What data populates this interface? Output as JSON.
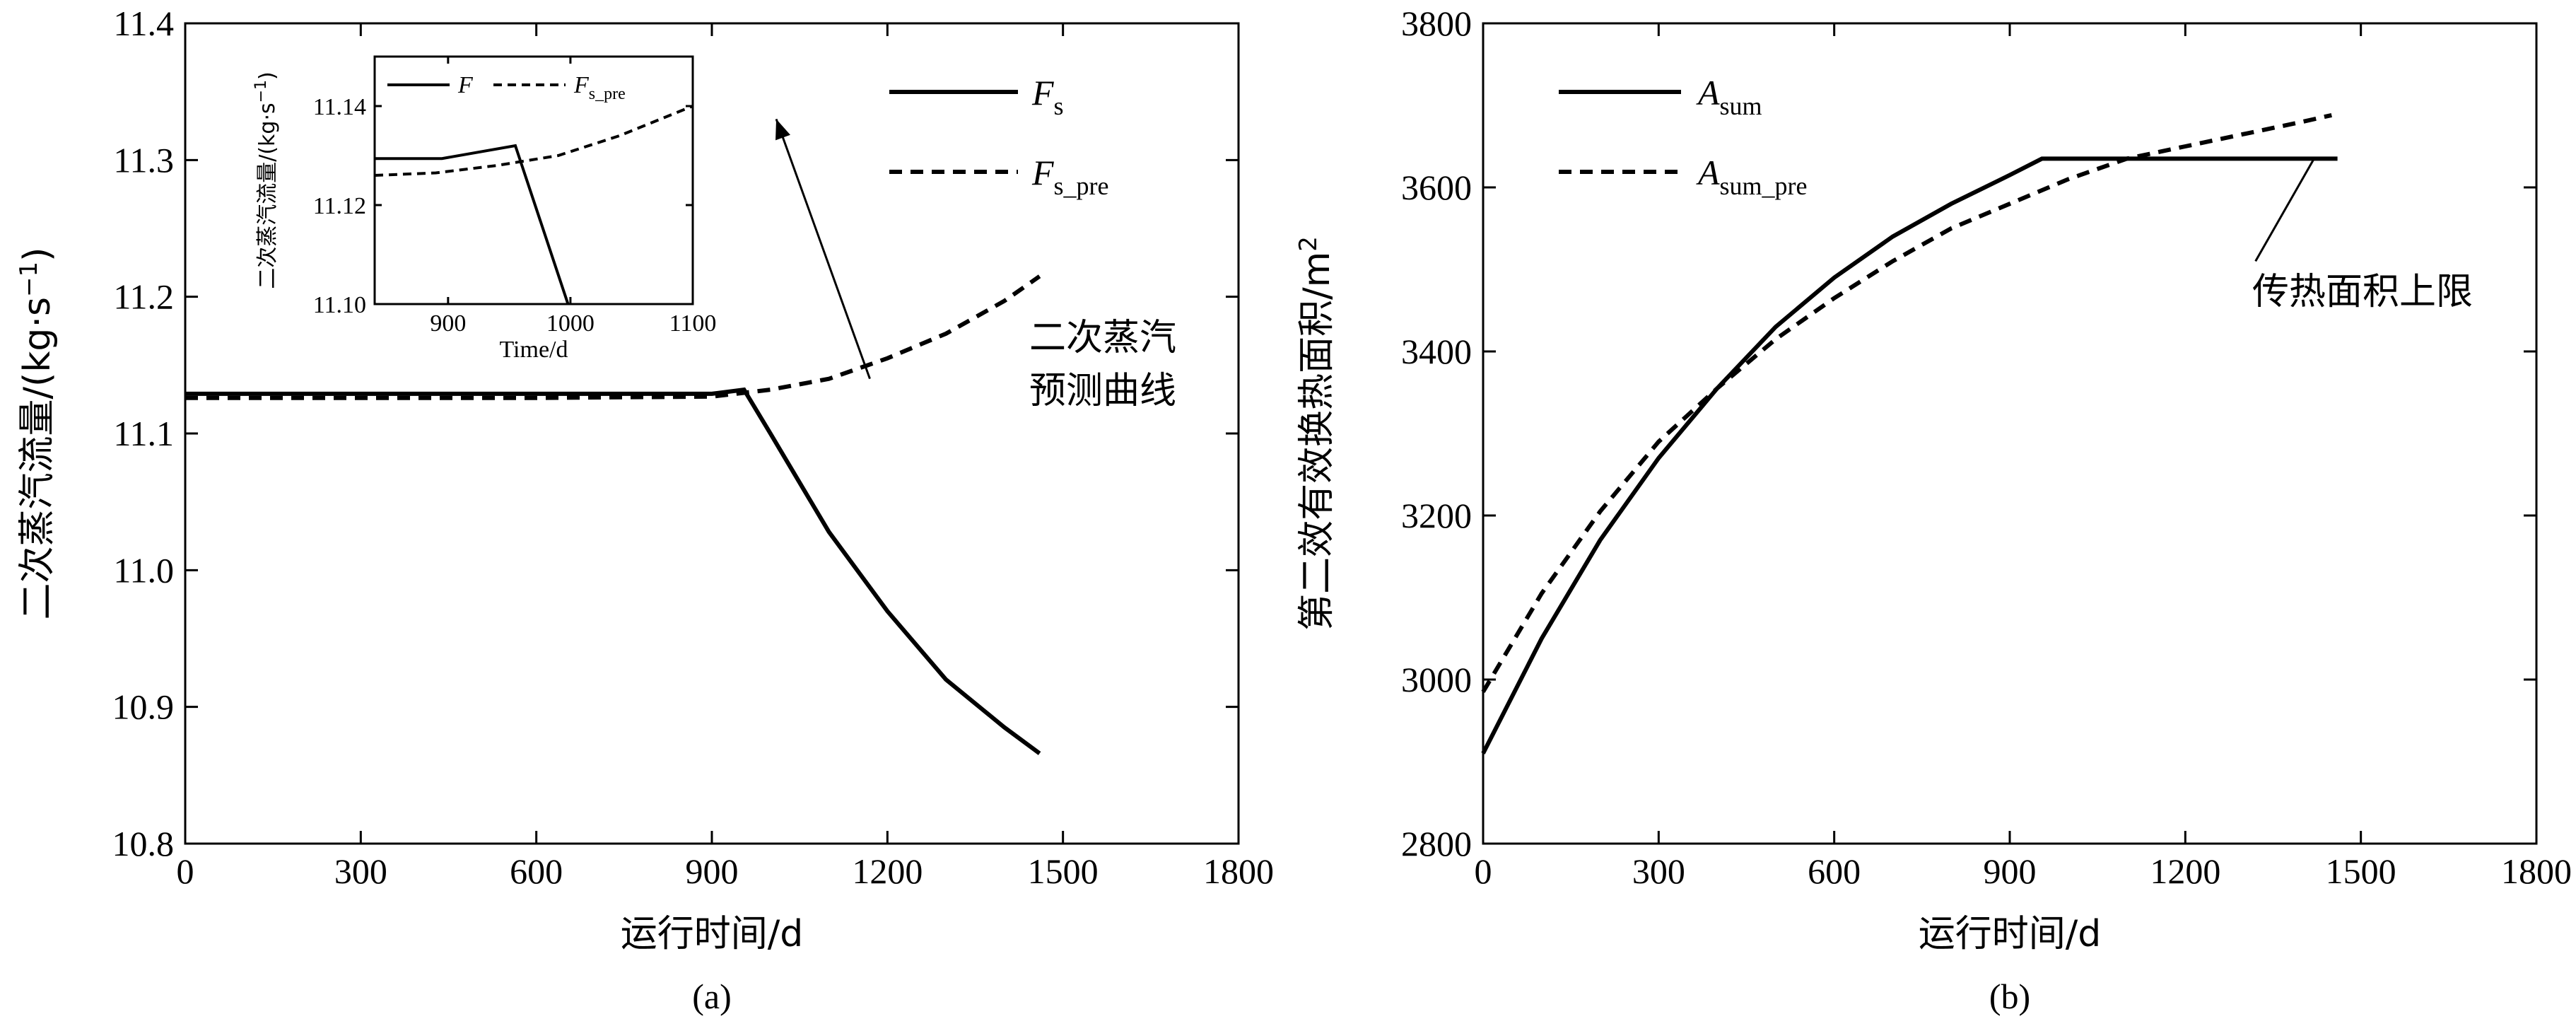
{
  "chart_data": [
    {
      "id": "a",
      "type": "line",
      "caption": "(a)",
      "xlabel": "运行时间/d",
      "ylabel_main": "二次蒸汽流量/(kg·s",
      "ylabel_sup": "−1",
      "ylabel_close": ")",
      "xlim": [
        0,
        1800
      ],
      "ylim": [
        10.8,
        11.4
      ],
      "xticks": [
        0,
        300,
        600,
        900,
        1200,
        1500,
        1800
      ],
      "yticks": [
        10.8,
        10.9,
        11.0,
        11.1,
        11.2,
        11.3,
        11.4
      ],
      "ytick_labels": [
        "10.8",
        "10.9",
        "11.0",
        "11.1",
        "11.2",
        "11.3",
        "11.4"
      ],
      "legend_position": "top-right",
      "series": [
        {
          "name": "Fs",
          "legend_main": "F",
          "legend_sub": "s",
          "style": "solid",
          "x": [
            0,
            300,
            600,
            900,
            955,
            1000,
            1100,
            1200,
            1300,
            1400,
            1460
          ],
          "y": [
            11.129,
            11.129,
            11.129,
            11.129,
            11.132,
            11.1,
            11.028,
            10.97,
            10.92,
            10.885,
            10.866
          ]
        },
        {
          "name": "Fs_pre",
          "legend_main": "F",
          "legend_sub": "s_pre",
          "style": "dashed",
          "x": [
            0,
            300,
            600,
            900,
            1000,
            1100,
            1200,
            1300,
            1400,
            1460
          ],
          "y": [
            11.126,
            11.126,
            11.126,
            11.127,
            11.132,
            11.14,
            11.155,
            11.173,
            11.197,
            11.215
          ]
        }
      ],
      "annotation": {
        "line1": "二次蒸汽",
        "line2": "预测曲线",
        "arrow_from": [
          1170,
          11.14
        ],
        "arrow_to": [
          1010,
          11.33
        ]
      },
      "inset": {
        "xlabel": "Time/d",
        "ylabel_main": "二次蒸汽流量/(kg·s",
        "ylabel_sup": "−1",
        "ylabel_close": ")",
        "xlim": [
          840,
          1100
        ],
        "ylim": [
          11.1,
          11.15
        ],
        "xticks": [
          900,
          1000,
          1100
        ],
        "yticks": [
          11.1,
          11.12,
          11.14
        ],
        "ytick_labels": [
          "11.10",
          "11.12",
          "11.14"
        ],
        "legend": [
          {
            "main": "F",
            "sub": "",
            "style": "solid"
          },
          {
            "main": "F",
            "sub": "s_pre",
            "style": "dashed"
          }
        ],
        "series": [
          {
            "style": "solid",
            "x": [
              840,
              895,
              955,
              998
            ],
            "y": [
              11.1294,
              11.1294,
              11.132,
              11.1
            ]
          },
          {
            "style": "dashed",
            "x": [
              840,
              890,
              940,
              990,
              1040,
              1100
            ],
            "y": [
              11.126,
              11.1265,
              11.128,
              11.13,
              11.134,
              11.14
            ]
          }
        ]
      }
    },
    {
      "id": "b",
      "type": "line",
      "caption": "(b)",
      "xlabel": "运行时间/d",
      "ylabel_main": "第二效有效换热面积/m",
      "ylabel_sup": "2",
      "xlim": [
        0,
        1800
      ],
      "ylim": [
        2800,
        3800
      ],
      "xticks": [
        0,
        300,
        600,
        900,
        1200,
        1500,
        1800
      ],
      "yticks": [
        2800,
        3000,
        3200,
        3400,
        3600,
        3800
      ],
      "legend_position": "top-left",
      "series": [
        {
          "name": "Asum",
          "legend_main": "A",
          "legend_sub": "sum",
          "style": "solid",
          "x": [
            0,
            100,
            200,
            300,
            400,
            500,
            600,
            700,
            800,
            900,
            955,
            1100,
            1300,
            1460
          ],
          "y": [
            2910,
            3050,
            3170,
            3270,
            3355,
            3430,
            3490,
            3540,
            3580,
            3615,
            3635,
            3635,
            3635,
            3635
          ]
        },
        {
          "name": "Asum_pre",
          "legend_main": "A",
          "legend_sub": "sum_pre",
          "style": "dashed",
          "x": [
            0,
            100,
            200,
            300,
            400,
            500,
            600,
            700,
            800,
            900,
            1000,
            1100,
            1200,
            1300,
            1400,
            1450
          ],
          "y": [
            2985,
            3105,
            3205,
            3290,
            3355,
            3415,
            3465,
            3510,
            3550,
            3580,
            3610,
            3635,
            3650,
            3665,
            3680,
            3688
          ]
        }
      ],
      "annotation": {
        "text": "传热面积上限",
        "pointer_from": [
          1320,
          3510
        ],
        "pointer_to": [
          1420,
          3635
        ]
      }
    }
  ]
}
